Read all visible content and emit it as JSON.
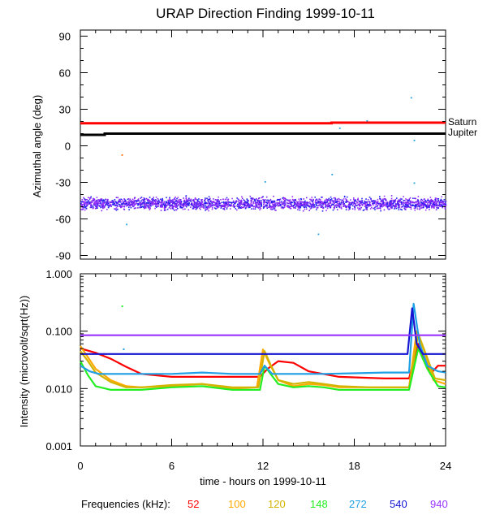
{
  "colors": {
    "background": "#ffffff",
    "axis": "#000000",
    "saturn": "#ff0000",
    "jupiter": "#000000"
  },
  "chart_data": [
    {
      "type": "scatter",
      "title": "URAP Direction Finding  1999-10-11",
      "ylabel": "Azimuthal angle (deg)",
      "xlim": [
        0,
        24
      ],
      "ylim": [
        -93,
        95
      ],
      "yticks": [
        90,
        60,
        30,
        0,
        -30,
        -60,
        -90
      ],
      "ytick_labels": [
        "90",
        "60",
        "30",
        "0",
        "-30",
        "-60",
        "-90"
      ],
      "reference_lines": [
        {
          "name": "Saturn",
          "label": "Saturn",
          "color": "#ff0000",
          "points": [
            [
              0,
              18.5
            ],
            [
              16.5,
              18.5
            ],
            [
              16.5,
              19
            ],
            [
              24,
              19
            ]
          ]
        },
        {
          "name": "Jupiter",
          "label": "Jupiter",
          "color": "#000000",
          "points": [
            [
              0,
              9
            ],
            [
              1.6,
              9
            ],
            [
              1.6,
              10
            ],
            [
              24,
              10
            ]
          ]
        }
      ],
      "scatter_band": {
        "name": "DF points",
        "colors": [
          "#9933ff",
          "#7b22ee",
          "#2222ee"
        ],
        "center": -47,
        "spread": 7,
        "x_range": [
          0,
          24
        ]
      },
      "outliers": [
        {
          "x": 2.7,
          "y": -7,
          "color": "#ff6600"
        },
        {
          "x": 12.1,
          "y": -29,
          "color": "#1e9fe6"
        },
        {
          "x": 16.5,
          "y": -23,
          "color": "#1e9fe6"
        },
        {
          "x": 15.6,
          "y": -72,
          "color": "#1e9fe6"
        },
        {
          "x": 17.0,
          "y": 15,
          "color": "#1e9fe6"
        },
        {
          "x": 21.7,
          "y": 40,
          "color": "#1e9fe6"
        },
        {
          "x": 21.9,
          "y": 5,
          "color": "#1e9fe6"
        },
        {
          "x": 21.9,
          "y": -30,
          "color": "#1e9fe6"
        },
        {
          "x": 18.8,
          "y": 21,
          "color": "#1e9fe6"
        },
        {
          "x": 3.0,
          "y": -64,
          "color": "#1e9fe6"
        }
      ]
    },
    {
      "type": "line",
      "ylabel": "Intensity (microvolt/sqrt(Hz))",
      "xlabel": "time - hours on 1999-10-11",
      "xlim": [
        0,
        24
      ],
      "xticks": [
        0,
        6,
        12,
        18,
        24
      ],
      "xtick_labels": [
        "0",
        "6",
        "12",
        "18",
        "24"
      ],
      "yscale": "log",
      "ylim": [
        0.001,
        1.0
      ],
      "yticks": [
        1.0,
        0.1,
        0.01,
        0.001
      ],
      "ytick_labels": [
        "1.000",
        "0.100",
        "0.010",
        "0.001"
      ],
      "series": [
        {
          "name": "52",
          "color": "#ff0000",
          "x": [
            0,
            1,
            2,
            3,
            4,
            6,
            9,
            11.8,
            12.3,
            13,
            14,
            15,
            17,
            20,
            21.6,
            22.2,
            22.6,
            23,
            23.5,
            24
          ],
          "values": [
            0.05,
            0.042,
            0.033,
            0.024,
            0.018,
            0.016,
            0.016,
            0.016,
            0.022,
            0.03,
            0.028,
            0.02,
            0.016,
            0.015,
            0.015,
            0.06,
            0.03,
            0.018,
            0.025,
            0.025
          ]
        },
        {
          "name": "100",
          "color": "#ffaa00",
          "x": [
            0,
            0.5,
            1,
            2,
            3,
            4,
            6,
            8,
            10,
            11.6,
            12,
            12.4,
            13,
            14,
            15,
            16,
            17,
            19,
            21.6,
            22.1,
            22.6,
            23.2,
            24
          ],
          "values": [
            0.055,
            0.035,
            0.022,
            0.014,
            0.011,
            0.0105,
            0.011,
            0.012,
            0.01,
            0.0105,
            0.048,
            0.028,
            0.014,
            0.011,
            0.012,
            0.0115,
            0.0105,
            0.0105,
            0.0105,
            0.1,
            0.045,
            0.014,
            0.012
          ]
        },
        {
          "name": "120",
          "color": "#d2b400",
          "x": [
            0,
            0.5,
            1,
            2,
            3,
            4,
            6,
            8,
            10,
            11.7,
            12.1,
            12.5,
            13,
            14,
            15,
            16,
            17,
            19,
            21.6,
            22.2,
            22.7,
            23.3,
            24
          ],
          "values": [
            0.045,
            0.03,
            0.019,
            0.013,
            0.0105,
            0.0105,
            0.0115,
            0.012,
            0.0105,
            0.0105,
            0.045,
            0.026,
            0.014,
            0.012,
            0.013,
            0.012,
            0.011,
            0.0105,
            0.0105,
            0.09,
            0.04,
            0.015,
            0.014
          ]
        },
        {
          "name": "148",
          "color": "#22ee22",
          "x": [
            0,
            0.5,
            1,
            2,
            3,
            4,
            6,
            8,
            10,
            11.8,
            12.1,
            12.5,
            13,
            14,
            15,
            16,
            17,
            19,
            21.6,
            22.2,
            22.8,
            23.5,
            24
          ],
          "values": [
            0.03,
            0.017,
            0.011,
            0.0095,
            0.0095,
            0.0095,
            0.0105,
            0.011,
            0.0095,
            0.0095,
            0.025,
            0.018,
            0.012,
            0.0105,
            0.011,
            0.0105,
            0.0095,
            0.0095,
            0.0095,
            0.05,
            0.022,
            0.011,
            0.0105
          ]
        },
        {
          "name": "272",
          "color": "#1e9fe6",
          "x": [
            0,
            0.6,
            1.2,
            2,
            3,
            4,
            6,
            8,
            10,
            11.8,
            12.1,
            12.6,
            14,
            16,
            18,
            20,
            21.6,
            21.9,
            22.3,
            22.8,
            23.5,
            24
          ],
          "values": [
            0.025,
            0.02,
            0.018,
            0.018,
            0.018,
            0.018,
            0.018,
            0.019,
            0.018,
            0.018,
            0.025,
            0.018,
            0.018,
            0.018,
            0.0185,
            0.019,
            0.019,
            0.3,
            0.06,
            0.025,
            0.02,
            0.019
          ]
        },
        {
          "name": "540",
          "color": "#1414d2",
          "x": [
            0,
            6,
            12,
            18,
            21.5,
            21.8,
            22.1,
            22.5,
            24
          ],
          "values": [
            0.04,
            0.04,
            0.04,
            0.04,
            0.04,
            0.25,
            0.06,
            0.04,
            0.04
          ]
        },
        {
          "name": "940",
          "color": "#9933ff",
          "x": [
            0,
            6,
            12,
            18,
            24
          ],
          "values": [
            0.085,
            0.085,
            0.085,
            0.085,
            0.085
          ]
        }
      ],
      "stray_points": [
        {
          "x": 2.7,
          "y": 0.28,
          "color": "#22ee22"
        },
        {
          "x": 2.8,
          "y": 0.05,
          "color": "#1e9fe6"
        }
      ]
    }
  ],
  "legend": {
    "label": "Frequencies (kHz):",
    "items": [
      {
        "label": "52",
        "color": "#ff0000"
      },
      {
        "label": "100",
        "color": "#ffaa00"
      },
      {
        "label": "120",
        "color": "#d2b400"
      },
      {
        "label": "148",
        "color": "#22ee22"
      },
      {
        "label": "272",
        "color": "#1e9fe6"
      },
      {
        "label": "540",
        "color": "#1414d2"
      },
      {
        "label": "940",
        "color": "#9933ff"
      }
    ]
  }
}
